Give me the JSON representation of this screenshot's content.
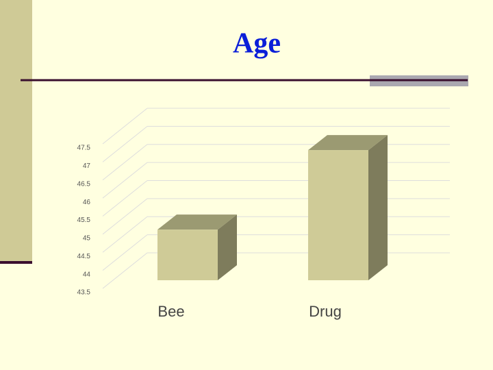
{
  "chart_data": {
    "type": "bar",
    "title": "Age",
    "categories": [
      "Bee",
      "Drug"
    ],
    "values": [
      44.9,
      47.1
    ],
    "color": "#cfcb97",
    "ylim": [
      43.5,
      47.5
    ],
    "yticks": [
      43.5,
      44,
      44.5,
      45,
      45.5,
      46,
      46.5,
      47,
      47.5
    ],
    "grid": true
  }
}
